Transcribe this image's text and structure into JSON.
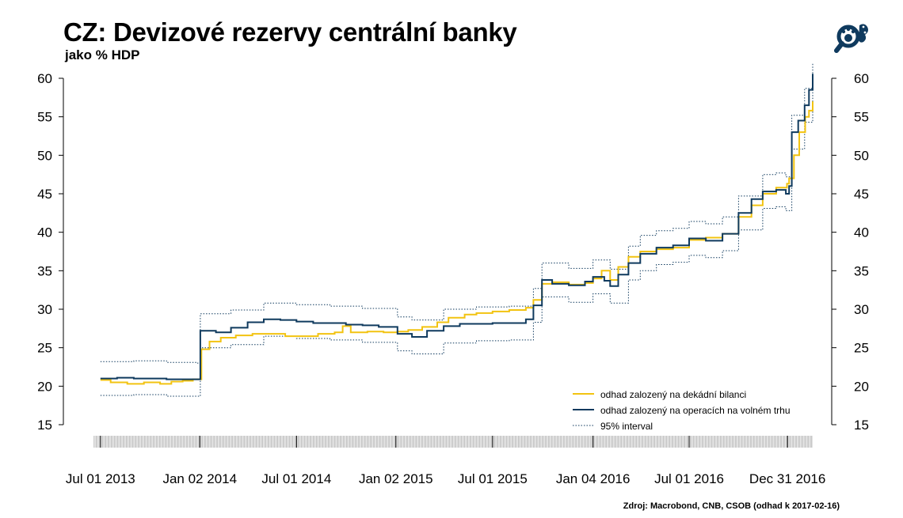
{
  "title": "CZ: Devizové rezervy centrální banky",
  "subtitle": "jako % HDP",
  "source": "Zdroj: Macrobond, CNB, CSOB (odhad k 2017-02-16)",
  "logo_icon": "bear-paw-magnifier-icon",
  "colors": {
    "decadal": "#f2c311",
    "market": "#0f3a5e",
    "interval": "#0f3a5e",
    "axis": "#000000",
    "rug": "#b8b8b8"
  },
  "chart_data": {
    "type": "line",
    "title": "CZ: Devizové rezervy centrální banky",
    "subtitle": "jako % HDP",
    "xlabel": "",
    "ylabel": "",
    "x_axis": {
      "type": "date",
      "range": [
        "2013-06-18",
        "2017-02-16"
      ],
      "tick_labels": [
        "Jul 01 2013",
        "Jan 02 2014",
        "Jul 01 2014",
        "Jan 02 2015",
        "Jul 01 2015",
        "Jan 04 2016",
        "Jul 01 2016",
        "Dec 31 2016"
      ],
      "tick_dates": [
        "2013-07-01",
        "2014-01-02",
        "2014-07-01",
        "2015-01-02",
        "2015-07-01",
        "2016-01-04",
        "2016-07-01",
        "2016-12-31"
      ]
    },
    "ylim": [
      15,
      60
    ],
    "y_ticks": [
      15,
      20,
      25,
      30,
      35,
      40,
      45,
      50,
      55,
      60
    ],
    "y_axis_both_sides": true,
    "grid": false,
    "legend_position": "bottom-right",
    "series": [
      {
        "name": "odhad zalozený na dekádní bilanci",
        "color": "#f2c311",
        "style": "solid",
        "points": [
          [
            "2013-07-01",
            20.8
          ],
          [
            "2013-07-20",
            20.5
          ],
          [
            "2013-08-20",
            20.3
          ],
          [
            "2013-09-20",
            20.5
          ],
          [
            "2013-10-20",
            20.3
          ],
          [
            "2013-11-10",
            20.6
          ],
          [
            "2013-12-01",
            20.7
          ],
          [
            "2013-12-20",
            20.9
          ],
          [
            "2014-01-05",
            24.8
          ],
          [
            "2014-01-20",
            25.8
          ],
          [
            "2014-02-10",
            26.3
          ],
          [
            "2014-03-10",
            26.6
          ],
          [
            "2014-04-10",
            26.8
          ],
          [
            "2014-05-10",
            26.8
          ],
          [
            "2014-06-10",
            26.5
          ],
          [
            "2014-07-10",
            26.5
          ],
          [
            "2014-08-10",
            26.8
          ],
          [
            "2014-09-10",
            27.0
          ],
          [
            "2014-09-25",
            27.8
          ],
          [
            "2014-10-10",
            27.0
          ],
          [
            "2014-11-10",
            27.1
          ],
          [
            "2014-12-10",
            27.0
          ],
          [
            "2015-01-05",
            27.1
          ],
          [
            "2015-01-25",
            27.3
          ],
          [
            "2015-02-20",
            27.7
          ],
          [
            "2015-03-20",
            28.3
          ],
          [
            "2015-04-10",
            28.9
          ],
          [
            "2015-05-10",
            29.3
          ],
          [
            "2015-06-01",
            29.5
          ],
          [
            "2015-07-01",
            29.7
          ],
          [
            "2015-08-01",
            29.9
          ],
          [
            "2015-09-01",
            30.2
          ],
          [
            "2015-09-15",
            31.2
          ],
          [
            "2015-10-01",
            33.3
          ],
          [
            "2015-10-20",
            33.5
          ],
          [
            "2015-11-20",
            33.2
          ],
          [
            "2015-12-20",
            33.4
          ],
          [
            "2016-01-04",
            34.0
          ],
          [
            "2016-01-20",
            35.0
          ],
          [
            "2016-02-05",
            33.8
          ],
          [
            "2016-02-20",
            35.5
          ],
          [
            "2016-03-10",
            36.8
          ],
          [
            "2016-04-01",
            37.5
          ],
          [
            "2016-05-01",
            37.8
          ],
          [
            "2016-06-01",
            38.0
          ],
          [
            "2016-07-01",
            39.0
          ],
          [
            "2016-08-01",
            39.3
          ],
          [
            "2016-09-01",
            39.8
          ],
          [
            "2016-10-01",
            42.0
          ],
          [
            "2016-10-25",
            43.5
          ],
          [
            "2016-11-15",
            45.0
          ],
          [
            "2016-12-10",
            45.8
          ],
          [
            "2016-12-30",
            46.3
          ],
          [
            "2017-01-03",
            47.0
          ],
          [
            "2017-01-12",
            50.0
          ],
          [
            "2017-01-22",
            53.0
          ],
          [
            "2017-02-02",
            55.0
          ],
          [
            "2017-02-09",
            55.8
          ],
          [
            "2017-02-16",
            57.0
          ]
        ]
      },
      {
        "name": "odhad zalozený na operacích na volném trhu",
        "color": "#0f3a5e",
        "style": "solid",
        "points": [
          [
            "2013-07-01",
            21.0
          ],
          [
            "2013-08-01",
            21.1
          ],
          [
            "2013-09-01",
            21.0
          ],
          [
            "2013-10-01",
            21.0
          ],
          [
            "2013-11-01",
            20.9
          ],
          [
            "2013-12-01",
            20.9
          ],
          [
            "2013-12-28",
            20.9
          ],
          [
            "2014-01-03",
            27.2
          ],
          [
            "2014-02-01",
            27.0
          ],
          [
            "2014-03-01",
            27.6
          ],
          [
            "2014-04-01",
            28.3
          ],
          [
            "2014-05-01",
            28.7
          ],
          [
            "2014-06-01",
            28.6
          ],
          [
            "2014-07-01",
            28.4
          ],
          [
            "2014-08-01",
            28.2
          ],
          [
            "2014-09-01",
            28.2
          ],
          [
            "2014-10-01",
            28.0
          ],
          [
            "2014-11-01",
            27.9
          ],
          [
            "2014-12-01",
            27.7
          ],
          [
            "2015-01-05",
            26.8
          ],
          [
            "2015-02-01",
            26.4
          ],
          [
            "2015-03-01",
            27.2
          ],
          [
            "2015-04-01",
            27.8
          ],
          [
            "2015-05-01",
            28.1
          ],
          [
            "2015-06-01",
            28.1
          ],
          [
            "2015-07-01",
            28.2
          ],
          [
            "2015-08-01",
            28.2
          ],
          [
            "2015-09-01",
            28.7
          ],
          [
            "2015-09-15",
            30.5
          ],
          [
            "2015-10-01",
            33.8
          ],
          [
            "2015-10-20",
            33.3
          ],
          [
            "2015-11-20",
            33.1
          ],
          [
            "2015-12-20",
            33.6
          ],
          [
            "2016-01-04",
            34.2
          ],
          [
            "2016-01-25",
            33.7
          ],
          [
            "2016-02-05",
            33.0
          ],
          [
            "2016-02-20",
            34.5
          ],
          [
            "2016-03-10",
            36.0
          ],
          [
            "2016-04-01",
            37.2
          ],
          [
            "2016-05-01",
            38.0
          ],
          [
            "2016-06-01",
            38.3
          ],
          [
            "2016-07-01",
            39.2
          ],
          [
            "2016-08-01",
            38.9
          ],
          [
            "2016-09-01",
            39.8
          ],
          [
            "2016-10-01",
            42.5
          ],
          [
            "2016-10-25",
            44.3
          ],
          [
            "2016-11-15",
            45.3
          ],
          [
            "2016-12-10",
            45.5
          ],
          [
            "2016-12-28",
            45.0
          ],
          [
            "2017-01-03",
            46.0
          ],
          [
            "2017-01-08",
            53.0
          ],
          [
            "2017-01-20",
            54.5
          ],
          [
            "2017-02-01",
            56.5
          ],
          [
            "2017-02-09",
            58.5
          ],
          [
            "2017-02-16",
            60.6
          ]
        ]
      },
      {
        "name": "95% interval",
        "color": "#0f3a5e",
        "style": "dotted",
        "upper": [
          [
            "2013-07-01",
            23.2
          ],
          [
            "2013-09-01",
            23.3
          ],
          [
            "2013-11-01",
            23.1
          ],
          [
            "2013-12-28",
            23.0
          ],
          [
            "2014-01-03",
            29.4
          ],
          [
            "2014-03-01",
            29.9
          ],
          [
            "2014-05-01",
            30.8
          ],
          [
            "2014-07-01",
            30.6
          ],
          [
            "2014-09-01",
            30.4
          ],
          [
            "2014-11-01",
            30.1
          ],
          [
            "2015-01-05",
            29.0
          ],
          [
            "2015-02-01",
            28.6
          ],
          [
            "2015-04-01",
            30.0
          ],
          [
            "2015-06-01",
            30.3
          ],
          [
            "2015-08-01",
            30.4
          ],
          [
            "2015-09-15",
            32.7
          ],
          [
            "2015-10-01",
            36.0
          ],
          [
            "2015-11-20",
            35.3
          ],
          [
            "2016-01-04",
            36.4
          ],
          [
            "2016-02-05",
            35.2
          ],
          [
            "2016-03-10",
            38.2
          ],
          [
            "2016-04-01",
            39.6
          ],
          [
            "2016-05-01",
            40.2
          ],
          [
            "2016-06-01",
            40.5
          ],
          [
            "2016-07-01",
            41.4
          ],
          [
            "2016-08-01",
            41.1
          ],
          [
            "2016-09-01",
            42.0
          ],
          [
            "2016-10-01",
            44.7
          ],
          [
            "2016-11-15",
            47.5
          ],
          [
            "2016-12-10",
            47.7
          ],
          [
            "2016-12-28",
            47.2
          ],
          [
            "2017-01-08",
            55.2
          ],
          [
            "2017-02-01",
            58.7
          ],
          [
            "2017-02-16",
            62.0
          ]
        ],
        "lower": [
          [
            "2013-07-01",
            18.8
          ],
          [
            "2013-09-01",
            18.9
          ],
          [
            "2013-11-01",
            18.7
          ],
          [
            "2013-12-28",
            18.7
          ],
          [
            "2014-01-03",
            25.0
          ],
          [
            "2014-03-01",
            25.4
          ],
          [
            "2014-05-01",
            26.5
          ],
          [
            "2014-07-01",
            26.2
          ],
          [
            "2014-09-01",
            26.0
          ],
          [
            "2014-11-01",
            25.7
          ],
          [
            "2015-01-05",
            24.6
          ],
          [
            "2015-02-01",
            24.2
          ],
          [
            "2015-04-01",
            25.6
          ],
          [
            "2015-06-01",
            25.9
          ],
          [
            "2015-08-01",
            26.0
          ],
          [
            "2015-09-15",
            28.3
          ],
          [
            "2015-10-01",
            31.6
          ],
          [
            "2015-11-20",
            30.9
          ],
          [
            "2016-01-04",
            32.0
          ],
          [
            "2016-02-05",
            30.8
          ],
          [
            "2016-03-10",
            33.8
          ],
          [
            "2016-04-01",
            35.0
          ],
          [
            "2016-05-01",
            35.8
          ],
          [
            "2016-06-01",
            36.1
          ],
          [
            "2016-07-01",
            37.0
          ],
          [
            "2016-08-01",
            36.7
          ],
          [
            "2016-09-01",
            37.6
          ],
          [
            "2016-10-01",
            40.3
          ],
          [
            "2016-11-15",
            43.1
          ],
          [
            "2016-12-10",
            43.3
          ],
          [
            "2016-12-28",
            42.8
          ],
          [
            "2017-01-08",
            50.8
          ],
          [
            "2017-02-01",
            54.3
          ],
          [
            "2017-02-16",
            58.5
          ]
        ]
      }
    ]
  }
}
